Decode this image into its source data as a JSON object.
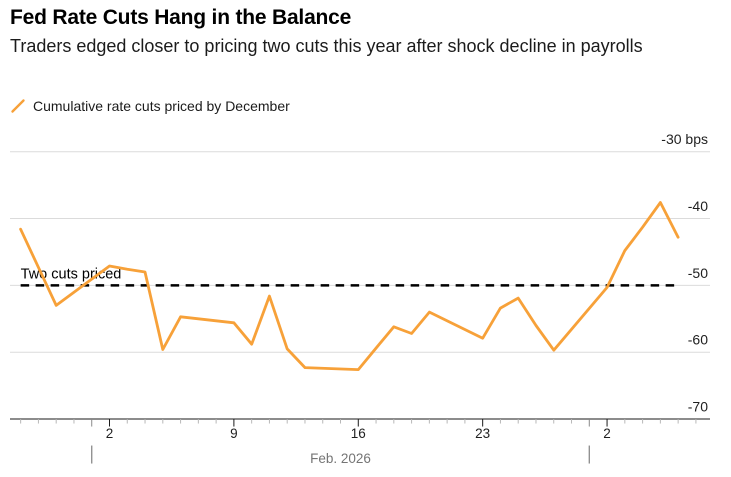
{
  "header": {
    "title": "Fed Rate Cuts Hang in the Balance",
    "subtitle": "Traders edged closer to pricing two cuts this year after shock decline in payrolls",
    "legend": {
      "marker": "slash-icon",
      "label": "Cumulative rate cuts priced by December",
      "color": "#F7A139"
    }
  },
  "chart_data": {
    "type": "line",
    "title": "Fed Rate Cuts Hang in the Balance",
    "unit": "bps",
    "ylim": [
      -70,
      -30
    ],
    "grid": true,
    "legend_position": "top-left",
    "y_ticks": [
      {
        "label": "-30 bps",
        "value": -30
      },
      {
        "label": "-40",
        "value": -40
      },
      {
        "label": "-50",
        "value": -50
      },
      {
        "label": "-60",
        "value": -60
      },
      {
        "label": "-70",
        "value": -70
      }
    ],
    "x_ticks": [
      {
        "label": "2",
        "date": "Feb 2"
      },
      {
        "label": "9",
        "date": "Feb 9"
      },
      {
        "label": "16",
        "date": "Feb 16"
      },
      {
        "label": "23",
        "date": "Feb 23"
      },
      {
        "label": "2",
        "date": "Mar 2"
      }
    ],
    "x_axis_range": [
      "Jan 28",
      "Mar 7"
    ],
    "month_boundaries": [
      "Feb 1",
      "Mar 1"
    ],
    "x_month_label": "Feb. 2026",
    "reference_line": {
      "label": "Two cuts priced",
      "value": -50,
      "style": "dashed",
      "color": "#000000"
    },
    "series": [
      {
        "name": "Cumulative rate cuts priced by December",
        "color": "#F7A139",
        "points": [
          [
            "Jan 28",
            -41.6
          ],
          [
            "Jan 29",
            -47.3
          ],
          [
            "Jan 30",
            -53.0
          ],
          [
            "Feb 2",
            -47.1
          ],
          [
            "Feb 3",
            -47.6
          ],
          [
            "Feb 4",
            -48.0
          ],
          [
            "Feb 5",
            -59.6
          ],
          [
            "Feb 6",
            -54.7
          ],
          [
            "Feb 9",
            -55.6
          ],
          [
            "Feb 10",
            -58.8
          ],
          [
            "Feb 11",
            -51.6
          ],
          [
            "Feb 12",
            -59.5
          ],
          [
            "Feb 13",
            -62.3
          ],
          [
            "Feb 16",
            -62.6
          ],
          [
            "Feb 17",
            -59.4
          ],
          [
            "Feb 18",
            -56.2
          ],
          [
            "Feb 19",
            -57.2
          ],
          [
            "Feb 20",
            -54.0
          ],
          [
            "Feb 23",
            -57.9
          ],
          [
            "Feb 24",
            -53.4
          ],
          [
            "Feb 25",
            -51.9
          ],
          [
            "Feb 26",
            -56.0
          ],
          [
            "Feb 27",
            -59.7
          ],
          [
            "Mar 2",
            -50.3
          ],
          [
            "Mar 3",
            -44.8
          ],
          [
            "Mar 4",
            -41.3
          ],
          [
            "Mar 5",
            -37.6
          ],
          [
            "Mar 6",
            -42.8
          ]
        ]
      }
    ]
  }
}
